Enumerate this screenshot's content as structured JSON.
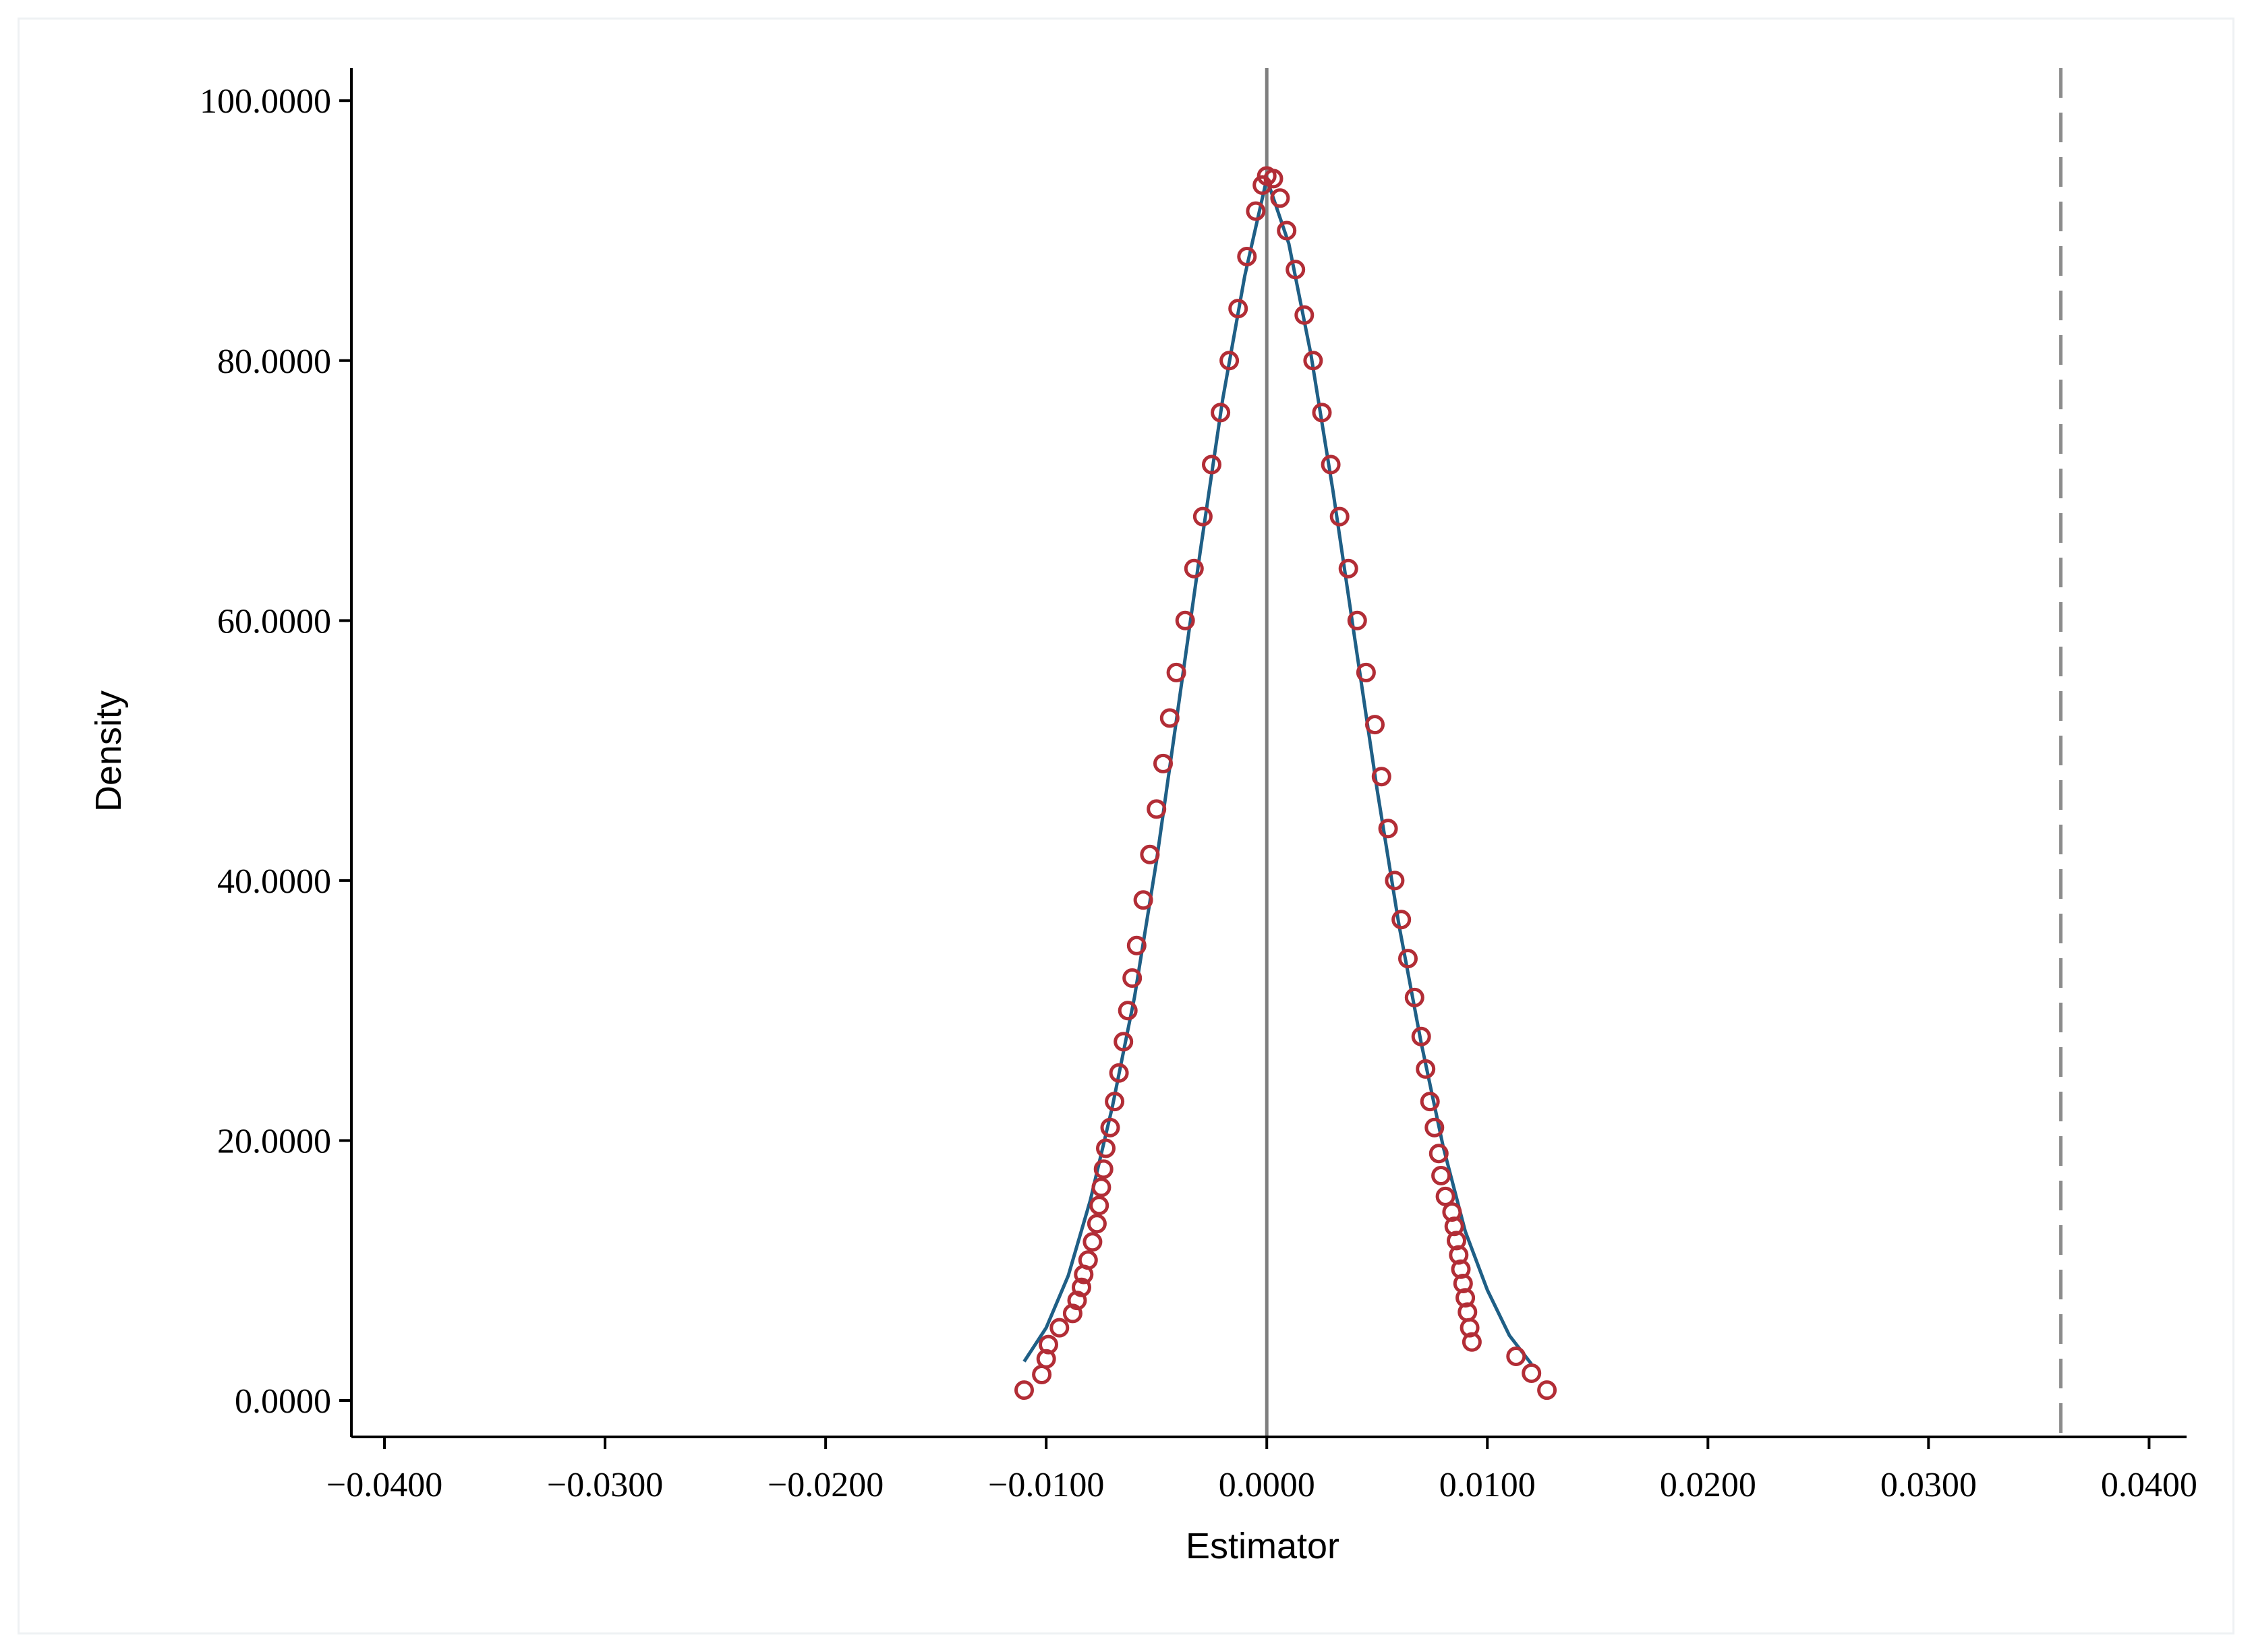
{
  "chart_data": {
    "type": "scatter",
    "title": "",
    "xlabel": "Estimator",
    "ylabel": "Density",
    "xlim": [
      -0.0415,
      0.0417
    ],
    "ylim": [
      -2.8,
      102.5
    ],
    "x_ticks": [
      -0.04,
      -0.03,
      -0.02,
      -0.01,
      0.0,
      0.01,
      0.02,
      0.03,
      0.04
    ],
    "x_tick_labels": [
      "−0.0400",
      "−0.0300",
      "−0.0200",
      "−0.0100",
      "0.0000",
      "0.0100",
      "0.0200",
      "0.0300",
      "0.0400"
    ],
    "y_ticks": [
      0,
      20,
      40,
      60,
      80,
      100
    ],
    "y_tick_labels": [
      "0.0000",
      "20.0000",
      "40.0000",
      "60.0000",
      "80.0000",
      "100.0000"
    ],
    "reference_lines": [
      {
        "x": 0.0,
        "style": "solid",
        "color": "#7f7f7f"
      },
      {
        "x": 0.036,
        "style": "dashed",
        "color": "#8c8c8c"
      }
    ],
    "series": [
      {
        "kind": "markers",
        "marker": "hollow-circle",
        "color": "#b22d36",
        "points": [
          [
            -0.011,
            0.8
          ],
          [
            -0.0102,
            2.0
          ],
          [
            -0.01,
            3.2
          ],
          [
            -0.0099,
            4.3
          ],
          [
            -0.0094,
            5.6
          ],
          [
            -0.0088,
            6.7
          ],
          [
            -0.0086,
            7.7
          ],
          [
            -0.0084,
            8.7
          ],
          [
            -0.0083,
            9.7
          ],
          [
            -0.0081,
            10.8
          ],
          [
            -0.0079,
            12.2
          ],
          [
            -0.0077,
            13.6
          ],
          [
            -0.0076,
            15.0
          ],
          [
            -0.0075,
            16.4
          ],
          [
            -0.0074,
            17.8
          ],
          [
            -0.0073,
            19.4
          ],
          [
            -0.0071,
            21.0
          ],
          [
            -0.0069,
            23.0
          ],
          [
            -0.0067,
            25.2
          ],
          [
            -0.0065,
            27.6
          ],
          [
            -0.0063,
            30.0
          ],
          [
            -0.0061,
            32.5
          ],
          [
            -0.0059,
            35.0
          ],
          [
            -0.0056,
            38.5
          ],
          [
            -0.0053,
            42.0
          ],
          [
            -0.005,
            45.5
          ],
          [
            -0.0047,
            49.0
          ],
          [
            -0.0044,
            52.5
          ],
          [
            -0.0041,
            56.0
          ],
          [
            -0.0037,
            60.0
          ],
          [
            -0.0033,
            64.0
          ],
          [
            -0.0029,
            68.0
          ],
          [
            -0.0025,
            72.0
          ],
          [
            -0.0021,
            76.0
          ],
          [
            -0.0017,
            80.0
          ],
          [
            -0.0013,
            84.0
          ],
          [
            -0.0009,
            88.0
          ],
          [
            -0.0005,
            91.5
          ],
          [
            -0.0002,
            93.5
          ],
          [
            0.0,
            94.2
          ],
          [
            0.0003,
            94.0
          ],
          [
            0.0006,
            92.5
          ],
          [
            0.0009,
            90.0
          ],
          [
            0.0013,
            87.0
          ],
          [
            0.0017,
            83.5
          ],
          [
            0.0021,
            80.0
          ],
          [
            0.0025,
            76.0
          ],
          [
            0.0029,
            72.0
          ],
          [
            0.0033,
            68.0
          ],
          [
            0.0037,
            64.0
          ],
          [
            0.0041,
            60.0
          ],
          [
            0.0045,
            56.0
          ],
          [
            0.0049,
            52.0
          ],
          [
            0.0052,
            48.0
          ],
          [
            0.0055,
            44.0
          ],
          [
            0.0058,
            40.0
          ],
          [
            0.0061,
            37.0
          ],
          [
            0.0064,
            34.0
          ],
          [
            0.0067,
            31.0
          ],
          [
            0.007,
            28.0
          ],
          [
            0.0072,
            25.5
          ],
          [
            0.0074,
            23.0
          ],
          [
            0.0076,
            21.0
          ],
          [
            0.0078,
            19.0
          ],
          [
            0.0079,
            17.3
          ],
          [
            0.0081,
            15.7
          ],
          [
            0.0084,
            14.5
          ],
          [
            0.0085,
            13.4
          ],
          [
            0.0086,
            12.3
          ],
          [
            0.0087,
            11.2
          ],
          [
            0.0088,
            10.1
          ],
          [
            0.0089,
            9.0
          ],
          [
            0.009,
            7.9
          ],
          [
            0.0091,
            6.8
          ],
          [
            0.0092,
            5.6
          ],
          [
            0.0093,
            4.5
          ],
          [
            0.0113,
            3.4
          ],
          [
            0.012,
            2.1
          ],
          [
            0.0127,
            0.8
          ]
        ]
      },
      {
        "kind": "line",
        "name": "",
        "color": "#1f5f86",
        "points": [
          [
            -0.011,
            3.0
          ],
          [
            -0.01,
            5.6
          ],
          [
            -0.009,
            9.6
          ],
          [
            -0.008,
            15.4
          ],
          [
            -0.007,
            22.6
          ],
          [
            -0.006,
            31.0
          ],
          [
            -0.005,
            41.5
          ],
          [
            -0.004,
            53.5
          ],
          [
            -0.003,
            65.5
          ],
          [
            -0.002,
            77.0
          ],
          [
            -0.001,
            86.5
          ],
          [
            0.0,
            94.0
          ],
          [
            0.001,
            89.0
          ],
          [
            0.002,
            80.5
          ],
          [
            0.003,
            70.0
          ],
          [
            0.004,
            58.5
          ],
          [
            0.005,
            47.0
          ],
          [
            0.006,
            36.5
          ],
          [
            0.007,
            27.5
          ],
          [
            0.008,
            19.5
          ],
          [
            0.009,
            13.0
          ],
          [
            0.01,
            8.5
          ],
          [
            0.011,
            5.0
          ],
          [
            0.012,
            2.8
          ]
        ]
      }
    ]
  }
}
